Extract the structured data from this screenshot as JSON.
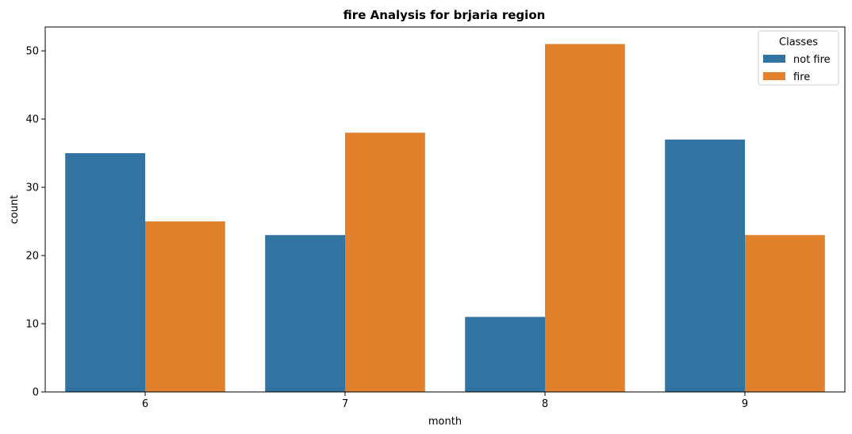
{
  "chart_data": {
    "type": "bar",
    "title": "fire Analysis for brjaria region",
    "xlabel": "month",
    "ylabel": "count",
    "categories": [
      "6",
      "7",
      "8",
      "9"
    ],
    "series": [
      {
        "name": "not fire",
        "values": [
          35,
          23,
          11,
          37
        ],
        "color": "#3274a1"
      },
      {
        "name": "fire",
        "values": [
          25,
          38,
          51,
          23
        ],
        "color": "#e1812c"
      }
    ],
    "ylim": [
      0,
      53.5
    ],
    "yticks": [
      0,
      10,
      20,
      30,
      40,
      50
    ],
    "grid": false,
    "legend": {
      "title": "Classes",
      "position": "top-right"
    }
  }
}
